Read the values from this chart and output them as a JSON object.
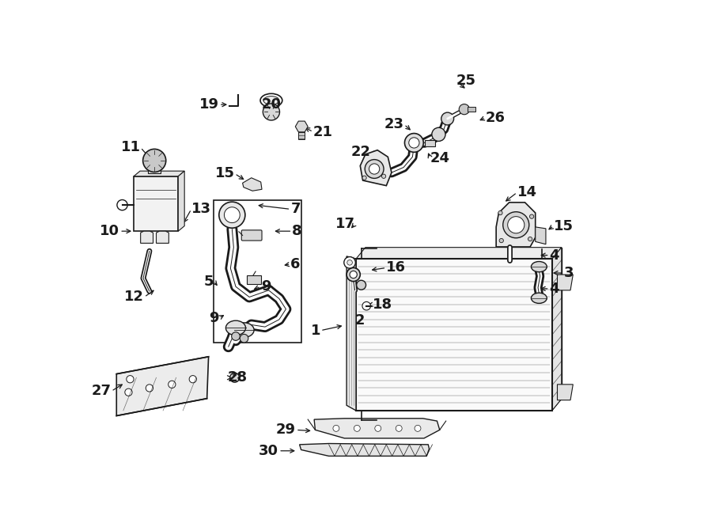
{
  "bg_color": "#ffffff",
  "line_color": "#1a1a1a",
  "fig_width": 9.0,
  "fig_height": 6.61,
  "dpi": 100,
  "font_size": 13,
  "label_positions": {
    "1": [
      0.435,
      0.365,
      0.48,
      0.38,
      "right",
      "→"
    ],
    "2": [
      0.497,
      0.385,
      0.503,
      0.385,
      "left",
      "→"
    ],
    "3": [
      0.896,
      0.475,
      0.873,
      0.475,
      "left",
      "←"
    ],
    "4a": [
      0.868,
      0.448,
      0.845,
      0.448,
      "left",
      "←"
    ],
    "4b": [
      0.868,
      0.515,
      0.845,
      0.515,
      "left",
      "←"
    ],
    "5": [
      0.228,
      0.465,
      0.234,
      0.458,
      "right",
      "→"
    ],
    "6": [
      0.375,
      0.492,
      0.358,
      0.488,
      "left",
      "←"
    ],
    "7": [
      0.375,
      0.598,
      0.315,
      0.605,
      "left",
      "←"
    ],
    "8": [
      0.378,
      0.558,
      0.338,
      0.558,
      "left",
      "←"
    ],
    "9a": [
      0.318,
      0.455,
      0.308,
      0.452,
      "left",
      "←"
    ],
    "9b": [
      0.238,
      0.392,
      0.255,
      0.398,
      "right",
      "→"
    ],
    "10": [
      0.048,
      0.558,
      0.075,
      0.558,
      "right",
      "→"
    ],
    "11": [
      0.088,
      0.718,
      0.108,
      0.698,
      "right",
      "↓"
    ],
    "12": [
      0.095,
      0.432,
      0.118,
      0.448,
      "right",
      "↗"
    ],
    "13": [
      0.185,
      0.598,
      0.168,
      0.568,
      "left",
      "↓"
    ],
    "14": [
      0.808,
      0.628,
      0.782,
      0.608,
      "left",
      "↓"
    ],
    "15a": [
      0.268,
      0.665,
      0.288,
      0.655,
      "right",
      "→"
    ],
    "15b": [
      0.878,
      0.568,
      0.865,
      0.562,
      "left",
      "←"
    ],
    "16": [
      0.558,
      0.488,
      0.525,
      0.485,
      "left",
      "←"
    ],
    "17": [
      0.498,
      0.572,
      0.488,
      0.562,
      "right",
      "↓"
    ],
    "18": [
      0.532,
      0.418,
      0.518,
      0.415,
      "left",
      "←"
    ],
    "19": [
      0.238,
      0.798,
      0.258,
      0.798,
      "right",
      "→"
    ],
    "20": [
      0.318,
      0.798,
      0.338,
      0.805,
      "left",
      "→"
    ],
    "21": [
      0.418,
      0.748,
      0.398,
      0.755,
      "left",
      "←"
    ],
    "22": [
      0.528,
      0.708,
      0.545,
      0.698,
      "right",
      "→"
    ],
    "23": [
      0.592,
      0.762,
      0.608,
      0.748,
      "right",
      "↓"
    ],
    "24": [
      0.642,
      0.698,
      0.638,
      0.712,
      "left",
      "↑"
    ],
    "25": [
      0.692,
      0.845,
      0.712,
      0.828,
      "left",
      "↓"
    ],
    "26": [
      0.748,
      0.775,
      0.735,
      0.768,
      "left",
      "←"
    ],
    "27": [
      0.035,
      0.252,
      0.058,
      0.268,
      "right",
      "→"
    ],
    "28": [
      0.258,
      0.278,
      0.268,
      0.275,
      "left",
      "←"
    ],
    "29": [
      0.388,
      0.178,
      0.418,
      0.175,
      "right",
      "→"
    ],
    "30": [
      0.355,
      0.138,
      0.388,
      0.138,
      "right",
      "→"
    ]
  }
}
